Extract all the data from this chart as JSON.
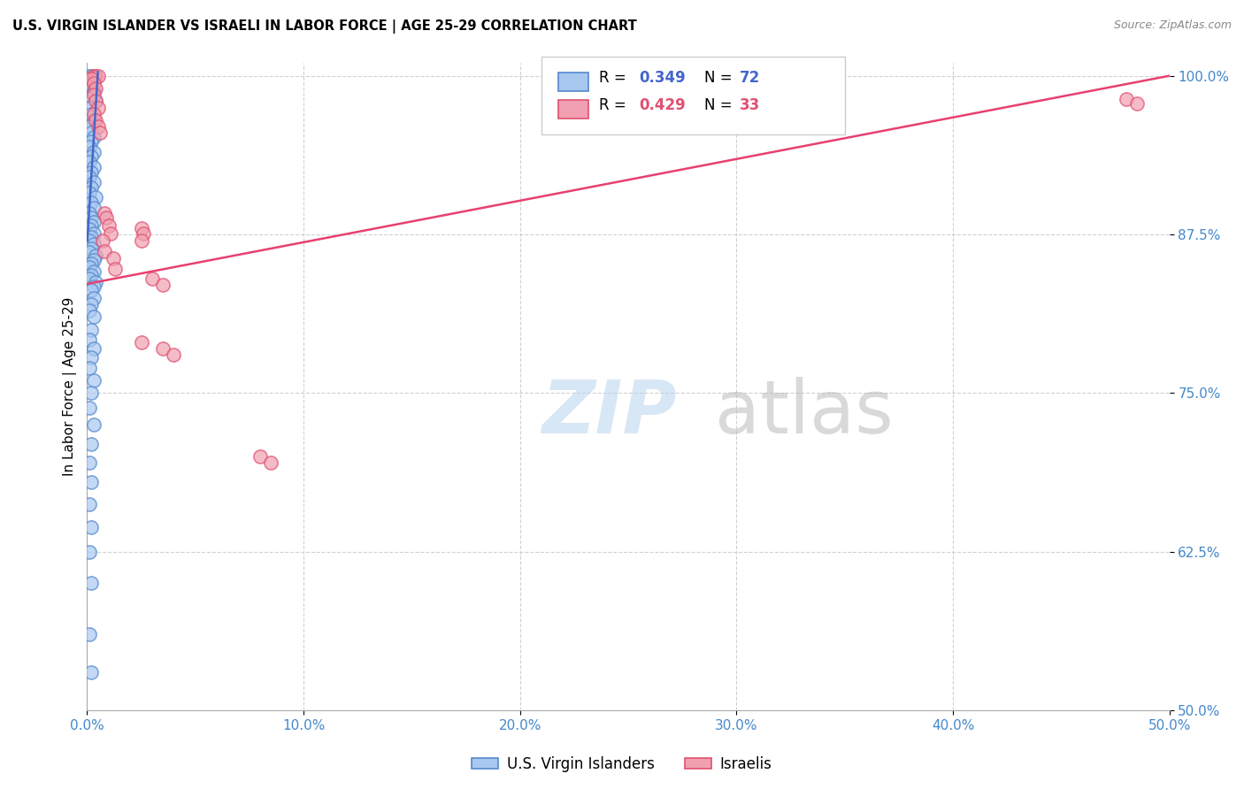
{
  "title": "U.S. VIRGIN ISLANDER VS ISRAELI IN LABOR FORCE | AGE 25-29 CORRELATION CHART",
  "source": "Source: ZipAtlas.com",
  "ylabel": "In Labor Force | Age 25-29",
  "xlim": [
    0.0,
    0.5
  ],
  "ylim": [
    0.5,
    1.01
  ],
  "xticks": [
    0.0,
    0.1,
    0.2,
    0.3,
    0.4,
    0.5
  ],
  "yticks": [
    0.5,
    0.625,
    0.75,
    0.875,
    1.0
  ],
  "xticklabels": [
    "0.0%",
    "10.0%",
    "20.0%",
    "30.0%",
    "40.0%",
    "50.0%"
  ],
  "yticklabels": [
    "50.0%",
    "62.5%",
    "75.0%",
    "87.5%",
    "100.0%"
  ],
  "legend_r1": "0.349",
  "legend_n1": "72",
  "legend_r2": "0.429",
  "legend_n2": "33",
  "blue_fill": "#a8c8f0",
  "blue_edge": "#5588cc",
  "pink_fill": "#f0a0b0",
  "pink_edge": "#e05070",
  "blue_line_color": "#4466cc",
  "pink_line_color": "#e84070",
  "blue_scatter_x": [
    0.001,
    0.002,
    0.001,
    0.003,
    0.002,
    0.001,
    0.003,
    0.002,
    0.004,
    0.001,
    0.002,
    0.003,
    0.001,
    0.002,
    0.003,
    0.002,
    0.001,
    0.003,
    0.002,
    0.001,
    0.003,
    0.002,
    0.001,
    0.003,
    0.002,
    0.001,
    0.004,
    0.002,
    0.003,
    0.001,
    0.002,
    0.003,
    0.002,
    0.001,
    0.003,
    0.002,
    0.001,
    0.003,
    0.002,
    0.001,
    0.004,
    0.003,
    0.002,
    0.001,
    0.003,
    0.002,
    0.001,
    0.004,
    0.003,
    0.002,
    0.003,
    0.002,
    0.001,
    0.003,
    0.002,
    0.001,
    0.003,
    0.002,
    0.001,
    0.003,
    0.002,
    0.001,
    0.003,
    0.002,
    0.001,
    0.002,
    0.001,
    0.002,
    0.001,
    0.002,
    0.001,
    0.002
  ],
  "blue_scatter_y": [
    1.0,
    1.0,
    0.998,
    0.998,
    0.995,
    0.992,
    0.988,
    0.984,
    0.98,
    0.975,
    0.97,
    0.965,
    0.96,
    0.955,
    0.952,
    0.948,
    0.944,
    0.94,
    0.936,
    0.932,
    0.928,
    0.924,
    0.92,
    0.916,
    0.912,
    0.908,
    0.904,
    0.9,
    0.896,
    0.892,
    0.888,
    0.885,
    0.882,
    0.879,
    0.876,
    0.873,
    0.87,
    0.867,
    0.864,
    0.861,
    0.858,
    0.855,
    0.852,
    0.849,
    0.846,
    0.843,
    0.84,
    0.837,
    0.834,
    0.831,
    0.825,
    0.82,
    0.815,
    0.81,
    0.8,
    0.792,
    0.785,
    0.778,
    0.77,
    0.76,
    0.75,
    0.738,
    0.725,
    0.71,
    0.695,
    0.68,
    0.662,
    0.644,
    0.625,
    0.6,
    0.56,
    0.53
  ],
  "pink_scatter_x": [
    0.003,
    0.004,
    0.005,
    0.002,
    0.003,
    0.004,
    0.003,
    0.004,
    0.005,
    0.003,
    0.004,
    0.005,
    0.006,
    0.008,
    0.009,
    0.01,
    0.011,
    0.007,
    0.008,
    0.012,
    0.013,
    0.025,
    0.026,
    0.025,
    0.03,
    0.035,
    0.025,
    0.035,
    0.04,
    0.08,
    0.085,
    0.48,
    0.485
  ],
  "pink_scatter_y": [
    1.0,
    1.0,
    1.0,
    0.998,
    0.994,
    0.99,
    0.985,
    0.98,
    0.975,
    0.97,
    0.965,
    0.96,
    0.955,
    0.892,
    0.888,
    0.882,
    0.876,
    0.87,
    0.862,
    0.856,
    0.848,
    0.88,
    0.876,
    0.87,
    0.84,
    0.835,
    0.79,
    0.785,
    0.78,
    0.7,
    0.695,
    0.982,
    0.978
  ],
  "blue_line_x": [
    0.0001,
    0.005
  ],
  "blue_line_y": [
    0.87,
    1.003
  ],
  "pink_line_x": [
    0.0,
    0.5
  ],
  "pink_line_y": [
    0.836,
    1.0
  ]
}
